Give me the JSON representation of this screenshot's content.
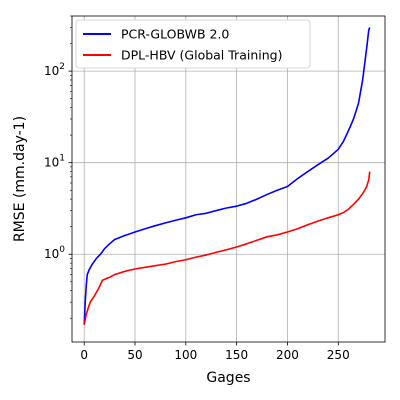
{
  "chart_data": {
    "type": "line",
    "xlabel": "Gages",
    "ylabel": "RMSE (mm.day-1)",
    "xlim": [
      -12,
      296
    ],
    "ylim": [
      0.11,
      400
    ],
    "yscale": "log",
    "grid": true,
    "legend_position": "top-left",
    "x_ticks": [
      0,
      50,
      100,
      150,
      200,
      250
    ],
    "y_ticks": [
      {
        "value": 1,
        "base": "10",
        "exp": "0"
      },
      {
        "value": 10,
        "base": "10",
        "exp": "1"
      },
      {
        "value": 100,
        "base": "10",
        "exp": "2"
      }
    ],
    "series": [
      {
        "name": "PCR-GLOBWB 2.0",
        "color": "#0000ff",
        "x": [
          0,
          1,
          2,
          3,
          5,
          8,
          12,
          16,
          20,
          25,
          30,
          40,
          50,
          60,
          70,
          80,
          90,
          100,
          110,
          120,
          130,
          140,
          150,
          160,
          170,
          180,
          190,
          200,
          210,
          220,
          230,
          240,
          245,
          250,
          255,
          258,
          262,
          265,
          268,
          270,
          272,
          274,
          276,
          278,
          280,
          281
        ],
        "y": [
          0.17,
          0.3,
          0.45,
          0.6,
          0.68,
          0.78,
          0.9,
          1.0,
          1.15,
          1.3,
          1.45,
          1.6,
          1.75,
          1.9,
          2.05,
          2.2,
          2.35,
          2.5,
          2.7,
          2.8,
          3.0,
          3.2,
          3.35,
          3.6,
          4.0,
          4.5,
          5.0,
          5.5,
          6.7,
          8.0,
          9.5,
          11.2,
          12.5,
          14.0,
          17.0,
          20.0,
          25.0,
          30.0,
          38.0,
          45.0,
          60.0,
          80.0,
          120.0,
          180.0,
          280.0,
          300.0
        ]
      },
      {
        "name": "DPL-HBV (Global Training)",
        "color": "#ff0000",
        "x": [
          0,
          2,
          4,
          6,
          10,
          14,
          18,
          25,
          30,
          40,
          50,
          60,
          70,
          80,
          90,
          100,
          110,
          120,
          130,
          140,
          150,
          160,
          170,
          180,
          190,
          200,
          210,
          220,
          230,
          240,
          250,
          255,
          260,
          265,
          270,
          274,
          276,
          278,
          280,
          281
        ],
        "y": [
          0.17,
          0.22,
          0.26,
          0.3,
          0.35,
          0.42,
          0.52,
          0.56,
          0.6,
          0.65,
          0.69,
          0.72,
          0.75,
          0.78,
          0.83,
          0.87,
          0.93,
          0.98,
          1.05,
          1.12,
          1.2,
          1.3,
          1.42,
          1.55,
          1.63,
          1.75,
          1.9,
          2.1,
          2.3,
          2.5,
          2.7,
          2.85,
          3.1,
          3.5,
          4.0,
          4.6,
          5.0,
          5.5,
          6.5,
          8.0
        ]
      }
    ]
  }
}
